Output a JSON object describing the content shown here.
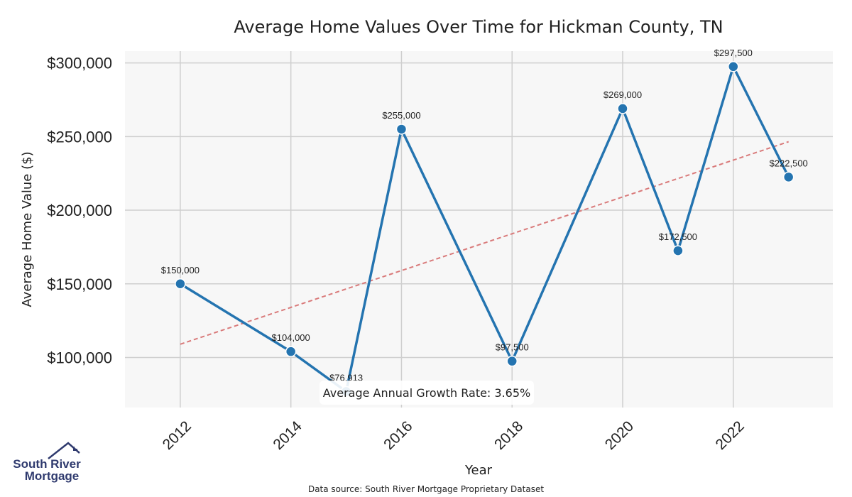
{
  "chart_data": {
    "type": "line",
    "title": "Average Home Values Over Time for Hickman County, TN",
    "xlabel": "Year",
    "ylabel": "Average Home Value ($)",
    "x_ticks": [
      "2012",
      "2014",
      "2016",
      "2018",
      "2020",
      "2022"
    ],
    "y_ticks": [
      "$100,000",
      "$150,000",
      "$200,000",
      "$250,000",
      "$300,000"
    ],
    "xlim": [
      2011.0,
      2023.8
    ],
    "ylim": [
      66000,
      308000
    ],
    "grid": true,
    "series": [
      {
        "x": [
          2012,
          2014,
          2015,
          2016,
          2018,
          2020,
          2021,
          2022,
          2023
        ],
        "y": [
          150000,
          104000,
          76913,
          255000,
          97500,
          269000,
          172500,
          297500,
          222500
        ],
        "labels": [
          "$150,000",
          "$104,000",
          "$76,913",
          "$255,000",
          "$97,500",
          "$269,000",
          "$172,500",
          "$297,500",
          "$222,500"
        ],
        "color": "#2474b0"
      }
    ],
    "trendline": {
      "start": [
        2012,
        109000
      ],
      "end": [
        2023,
        246500
      ],
      "color": "#d97a7a",
      "style": "dashed"
    },
    "annotation": "Average Annual Growth Rate: 3.65%"
  },
  "logo": {
    "line1": "South River",
    "line2": "Mortgage",
    "color": "#2f3a6e"
  },
  "source": "Data source: South River Mortgage Proprietary Dataset",
  "colors": {
    "plot_bg": "#f7f7f7",
    "grid": "#cfcfcf"
  }
}
